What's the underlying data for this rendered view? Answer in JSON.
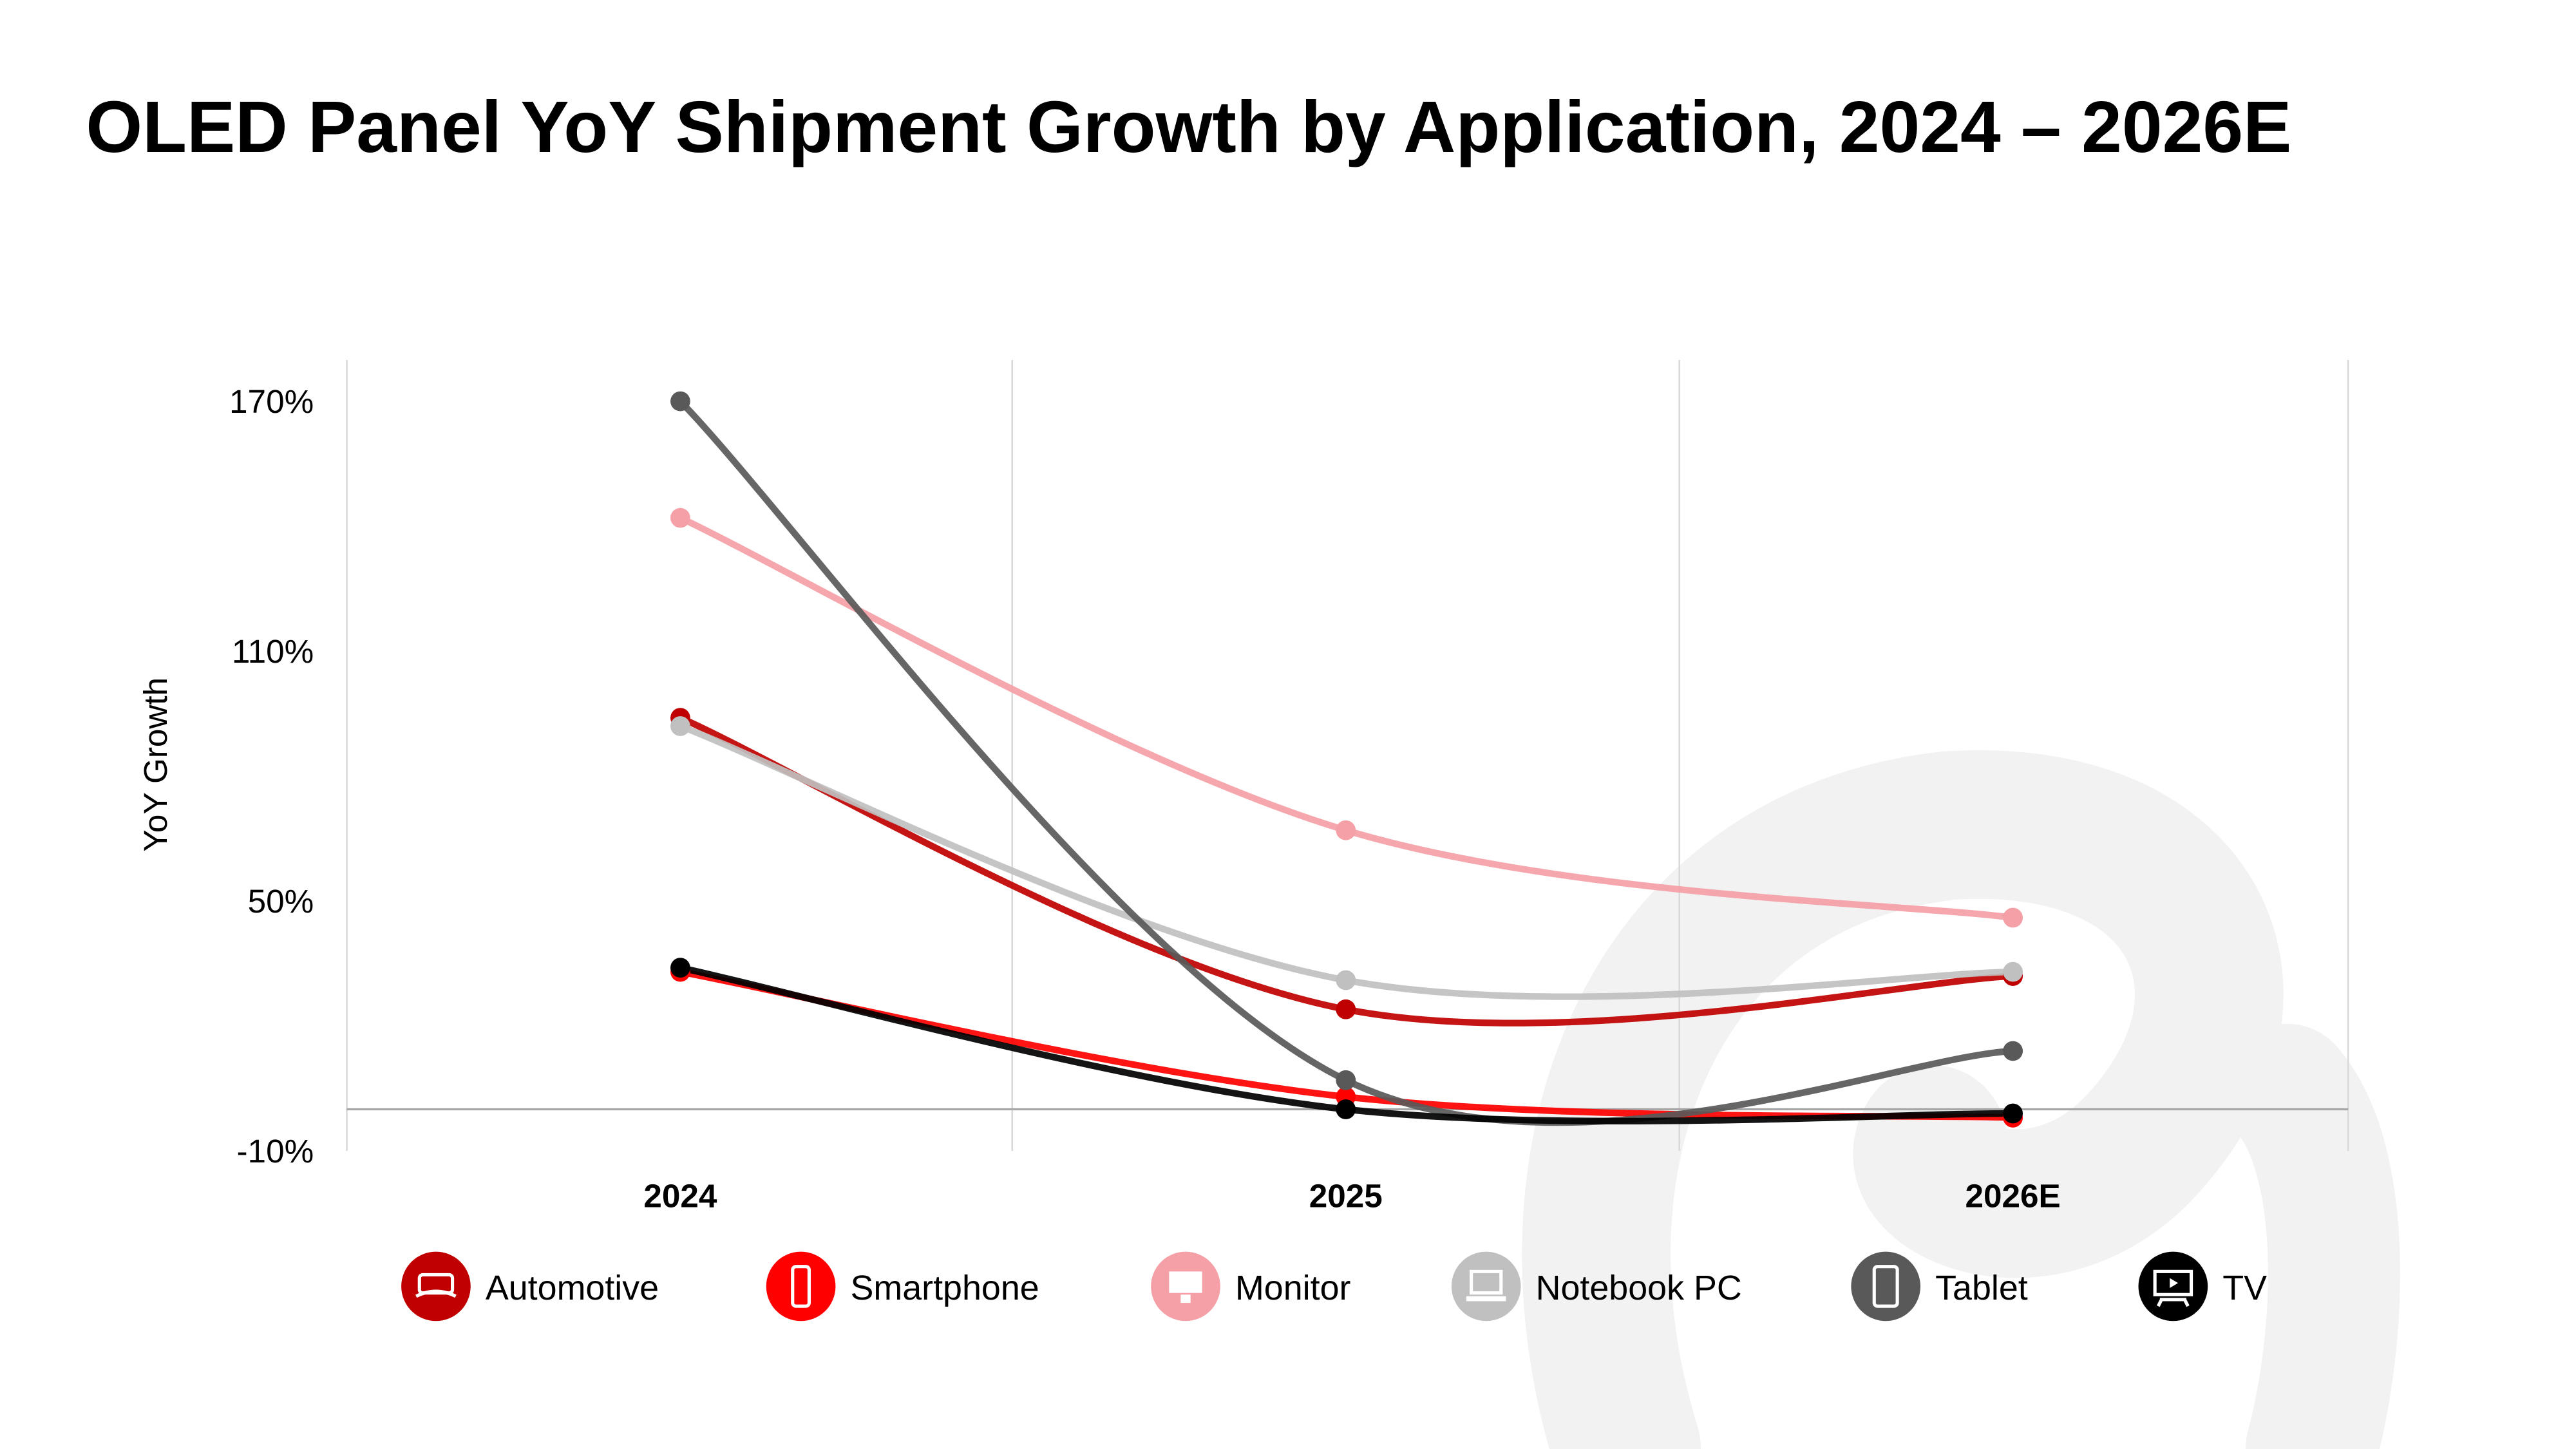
{
  "chart_data": {
    "type": "line",
    "title": "OLED Panel YoY Shipment Growth by Application, 2024 – 2026E",
    "xlabel": "",
    "ylabel": "YoY Growth",
    "categories": [
      "2024",
      "2025",
      "2026E"
    ],
    "y_ticks": [
      "170%",
      "110%",
      "50%",
      "-10%"
    ],
    "y_tick_values": [
      170,
      110,
      50,
      -10
    ],
    "ylim": [
      -10,
      170
    ],
    "grid": "vertical",
    "smooth": true,
    "legend_position": "bottom",
    "series": [
      {
        "name": "Automotive",
        "color": "#c00000",
        "icon": "car-dashboard-icon",
        "values": [
          94,
          24,
          32
        ]
      },
      {
        "name": "Smartphone",
        "color": "#ff0000",
        "icon": "smartphone-icon",
        "values": [
          33,
          3,
          -2
        ]
      },
      {
        "name": "Monitor",
        "color": "#f4a0a6",
        "icon": "monitor-icon",
        "values": [
          142,
          67,
          46
        ]
      },
      {
        "name": "Notebook PC",
        "color": "#c0c0c0",
        "icon": "laptop-icon",
        "values": [
          92,
          31,
          33
        ]
      },
      {
        "name": "Tablet",
        "color": "#595959",
        "icon": "tablet-icon",
        "values": [
          170,
          7,
          14
        ]
      },
      {
        "name": "TV",
        "color": "#000000",
        "icon": "tv-icon",
        "values": [
          34,
          0,
          -1
        ]
      }
    ]
  }
}
